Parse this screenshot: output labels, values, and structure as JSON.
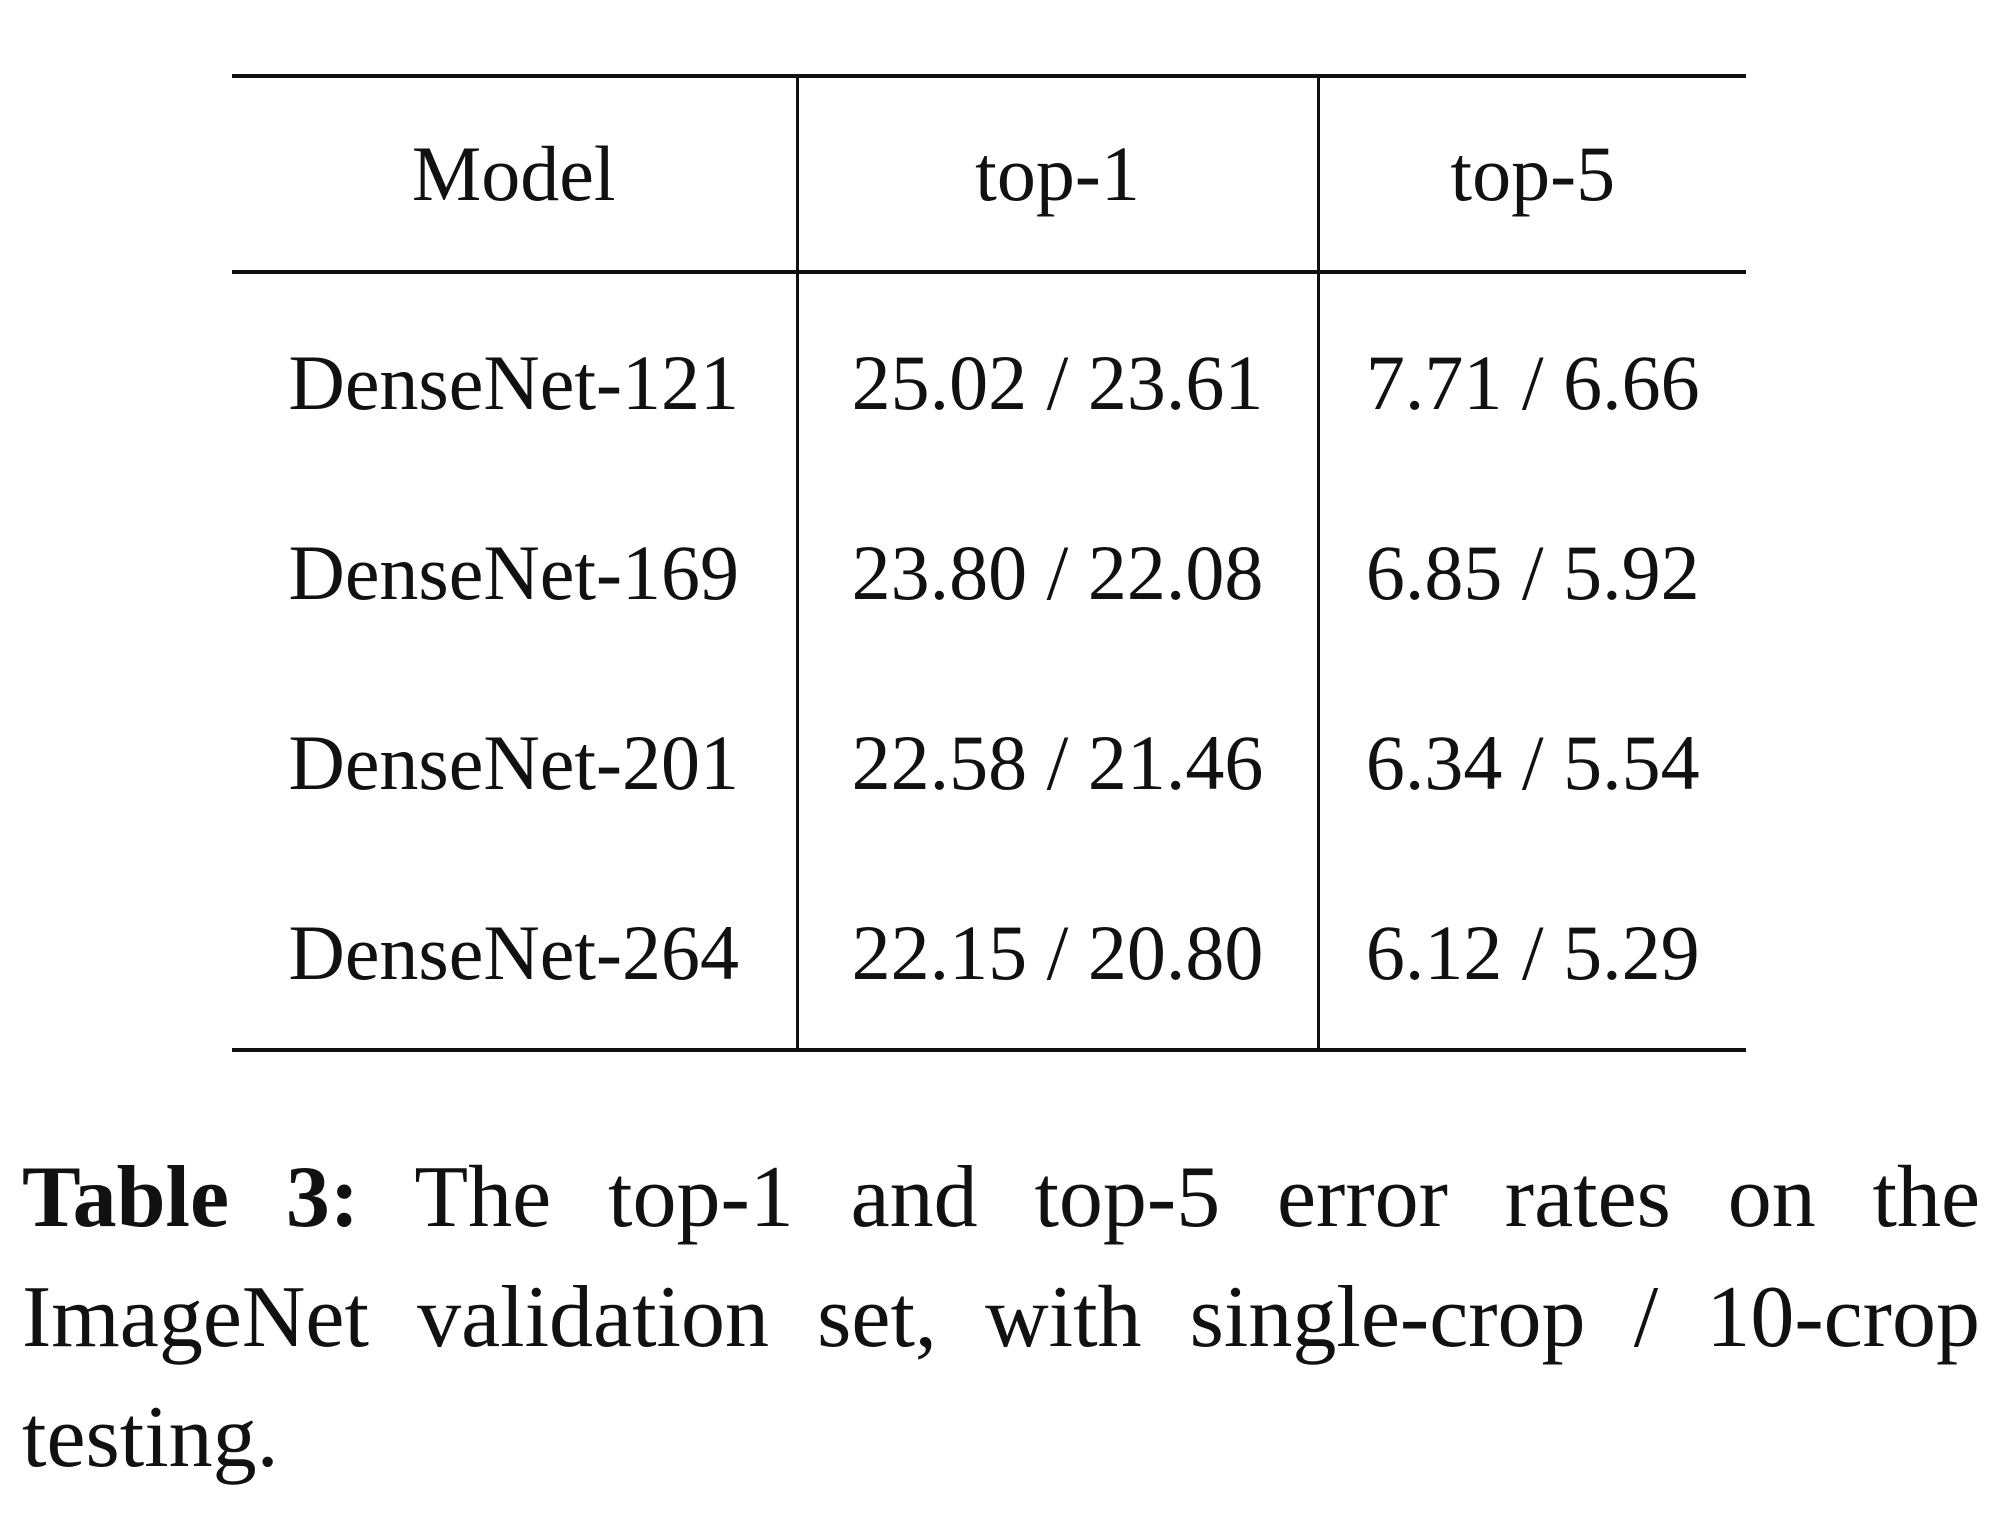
{
  "table": {
    "headers": [
      "Model",
      "top-1",
      "top-5"
    ],
    "rows": [
      [
        "DenseNet-121",
        "25.02 / 23.61",
        "7.71 / 6.66"
      ],
      [
        "DenseNet-169",
        "23.80 / 22.08",
        "6.85 / 5.92"
      ],
      [
        "DenseNet-201",
        "22.58 / 21.46",
        "6.34 / 5.54"
      ],
      [
        "DenseNet-264",
        "22.15 / 20.80",
        "6.12 / 5.29"
      ]
    ]
  },
  "caption": {
    "label": "Table 3:",
    "text": "The top-1 and top-5 error rates on the ImageNet validation set, with single-crop / 10-crop testing."
  }
}
